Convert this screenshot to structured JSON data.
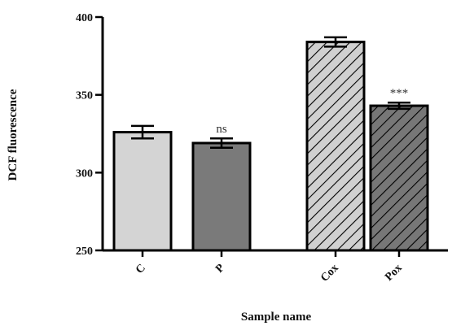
{
  "chart_data": {
    "type": "bar",
    "title": "",
    "xlabel": "Sample name",
    "ylabel": "DCF fluorescence",
    "ylim": [
      250,
      400
    ],
    "yticks": [
      250,
      300,
      350,
      400
    ],
    "grid": false,
    "categories": [
      "C",
      "P",
      "Cox",
      "Pox"
    ],
    "values": [
      326,
      319,
      384,
      343
    ],
    "errors": [
      4,
      3,
      3,
      2
    ],
    "significance": [
      "",
      "ns",
      "",
      "***"
    ],
    "fills": [
      {
        "color": "#d4d4d4",
        "pattern": "solid"
      },
      {
        "color": "#7a7a7a",
        "pattern": "solid"
      },
      {
        "color": "#d0d0d0",
        "pattern": "diagonal-hatch"
      },
      {
        "color": "#777777",
        "pattern": "diagonal-hatch"
      }
    ]
  }
}
